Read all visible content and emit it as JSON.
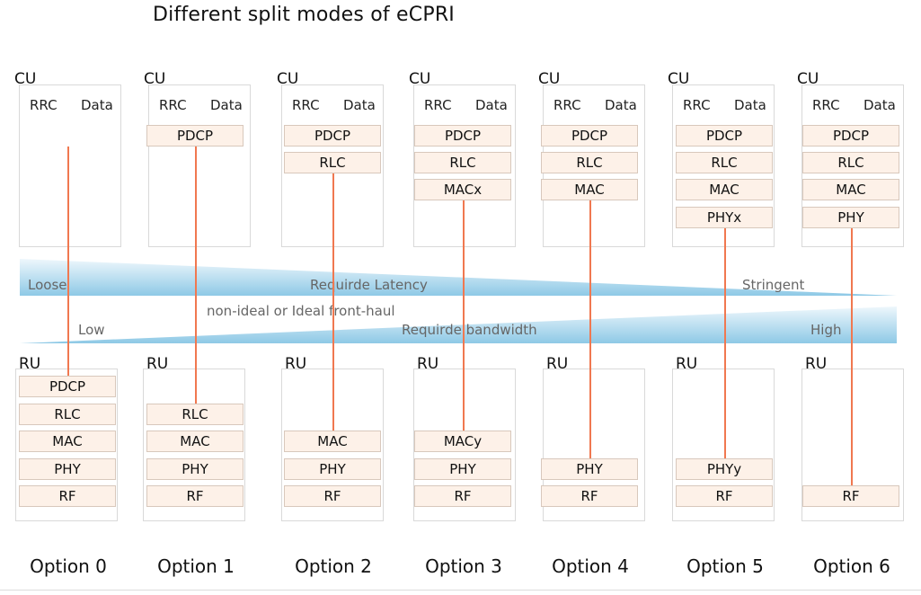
{
  "title": "Different split modes of eCPRI",
  "cu_label": "CU",
  "ru_label": "RU",
  "cu_header": {
    "rrc": "RRC",
    "data": "Data"
  },
  "latency_wedge": {
    "left": "Loose",
    "center": "Requirde Latency",
    "right": "Stringent"
  },
  "fronthaul_note": "non-ideal or Ideal front-haul",
  "bandwidth_wedge": {
    "left": "Low",
    "center": "Requirde bandwidth",
    "right": "High"
  },
  "colors": {
    "split_line": "#f07850",
    "layer_fill": "#fdf1e8",
    "wedge": "#7fbfe0"
  },
  "options": [
    {
      "label": "Option 0",
      "cu_layers": [],
      "ru_layers": [
        "PDCP",
        "RLC",
        "MAC",
        "PHY",
        "RF"
      ]
    },
    {
      "label": "Option 1",
      "cu_layers": [
        "PDCP"
      ],
      "ru_layers": [
        "RLC",
        "MAC",
        "PHY",
        "RF"
      ]
    },
    {
      "label": "Option 2",
      "cu_layers": [
        "PDCP",
        "RLC"
      ],
      "ru_layers": [
        "MAC",
        "PHY",
        "RF"
      ]
    },
    {
      "label": "Option 3",
      "cu_layers": [
        "PDCP",
        "RLC",
        "MACx"
      ],
      "ru_layers": [
        "MACy",
        "PHY",
        "RF"
      ]
    },
    {
      "label": "Option 4",
      "cu_layers": [
        "PDCP",
        "RLC",
        "MAC"
      ],
      "ru_layers": [
        "PHY",
        "RF"
      ]
    },
    {
      "label": "Option 5",
      "cu_layers": [
        "PDCP",
        "RLC",
        "MAC",
        "PHYx"
      ],
      "ru_layers": [
        "PHYy",
        "RF"
      ]
    },
    {
      "label": "Option 6",
      "cu_layers": [
        "PDCP",
        "RLC",
        "MAC",
        "PHY"
      ],
      "ru_layers": [
        "RF"
      ]
    }
  ]
}
